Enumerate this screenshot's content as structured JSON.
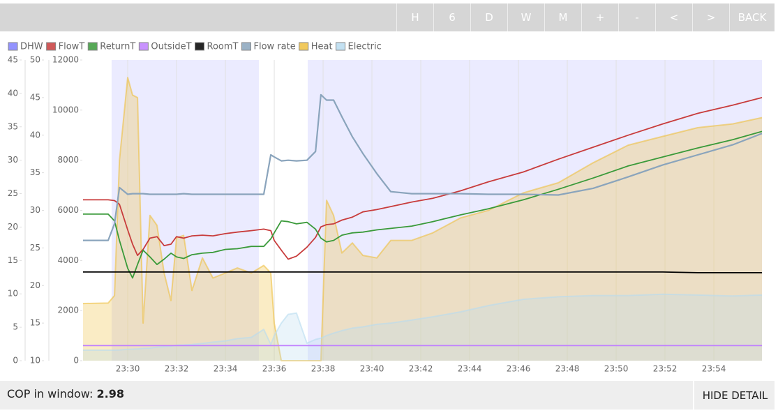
{
  "toolbar": {
    "buttons": [
      "H",
      "6",
      "D",
      "W",
      "M",
      "+",
      "-",
      "<",
      ">",
      "BACK"
    ]
  },
  "footer": {
    "cop_label": "COP in window:",
    "cop_value": 2.98,
    "hide_detail": "HIDE DETAIL"
  },
  "chart_data": {
    "type": "line",
    "xgrid": true,
    "xlim": [
      1408.17,
      1435.97
    ],
    "xticks": [
      {
        "value": 1410,
        "label": "23:30"
      },
      {
        "value": 1412,
        "label": "23:32"
      },
      {
        "value": 1414,
        "label": "23:34"
      },
      {
        "value": 1416,
        "label": "23:36"
      },
      {
        "value": 1418,
        "label": "23:38"
      },
      {
        "value": 1420,
        "label": "23:40"
      },
      {
        "value": 1422,
        "label": "23:42"
      },
      {
        "value": 1424,
        "label": "23:44"
      },
      {
        "value": 1426,
        "label": "23:46"
      },
      {
        "value": 1428,
        "label": "23:48"
      },
      {
        "value": 1430,
        "label": "23:50"
      },
      {
        "value": 1432,
        "label": "23:52"
      },
      {
        "value": 1434,
        "label": "23:54"
      }
    ],
    "ylim": [
      0,
      12000
    ],
    "yticks": [
      0,
      2000,
      4000,
      6000,
      8000,
      10000,
      12000
    ],
    "y2lim": [
      10,
      50
    ],
    "y2ticks": [
      10,
      15,
      20,
      25,
      30,
      35,
      40,
      45,
      50
    ],
    "y3lim": [
      0,
      45
    ],
    "y3ticks": [
      0,
      5,
      10,
      15,
      20,
      25,
      30,
      35,
      40,
      45
    ],
    "y3color": "#4aa8dc",
    "x": [
      1408.17,
      1409.2,
      1409.46,
      1409.66,
      1410,
      1410.2,
      1410.4,
      1410.63,
      1410.91,
      1411.2,
      1411.49,
      1411.77,
      1412,
      1412.29,
      1412.63,
      1413.06,
      1413.49,
      1414,
      1414.49,
      1415.06,
      1415.57,
      1415.86,
      1416,
      1416.29,
      1416.57,
      1416.91,
      1417.34,
      1417.69,
      1417.91,
      1418.14,
      1418.43,
      1418.77,
      1419.2,
      1419.63,
      1420.2,
      1420.77,
      1421.63,
      1422.49,
      1423.63,
      1424.77,
      1426.2,
      1427.63,
      1429.06,
      1430.49,
      1431.91,
      1433.34,
      1434.77,
      1435.97
    ],
    "series": [
      {
        "name": "DHW",
        "color": "#8080ff",
        "periods": [
          [
            1409.34,
            1415.37
          ],
          [
            1417.37,
            1435.97
          ]
        ]
      },
      {
        "name": "FlowT",
        "color": "#c83c3c",
        "axis": "y2",
        "values": [
          31.4,
          31.4,
          31.3,
          30.8,
          27.4,
          25.5,
          24,
          24.8,
          26.3,
          26.5,
          25.3,
          25.5,
          26.5,
          26.3,
          26.6,
          26.7,
          26.6,
          26.9,
          27.1,
          27.3,
          27.5,
          27.3,
          26,
          24.7,
          23.5,
          23.9,
          25.1,
          26.4,
          27.8,
          28.1,
          28.2,
          28.7,
          29.1,
          29.8,
          30.1,
          30.5,
          31.1,
          31.6,
          32.6,
          33.8,
          35.1,
          36.8,
          38.4,
          40,
          41.5,
          42.9,
          44,
          45
        ]
      },
      {
        "name": "ReturnT",
        "color": "#3a9a3a",
        "axis": "y2",
        "values": [
          29.5,
          29.5,
          28.6,
          26,
          22.3,
          21,
          22.8,
          24.7,
          23.8,
          22.8,
          23.5,
          24.3,
          23.8,
          23.6,
          24.1,
          24.3,
          24.4,
          24.8,
          24.9,
          25.2,
          25.2,
          26.2,
          27,
          28.6,
          28.5,
          28.2,
          28.4,
          27.5,
          26.3,
          25.8,
          26,
          26.7,
          27,
          27.1,
          27.4,
          27.6,
          27.9,
          28.5,
          29.4,
          30.2,
          31.4,
          32.8,
          34.3,
          35.9,
          37.1,
          38.3,
          39.4,
          40.5
        ]
      },
      {
        "name": "OutsideT",
        "color": "#c080ff",
        "axis": "y2",
        "values": [
          12,
          12,
          12,
          12,
          12,
          12,
          12,
          12,
          12,
          12,
          12,
          12,
          12,
          12,
          12,
          12,
          12,
          12,
          12,
          12,
          12,
          12,
          12,
          12,
          12,
          12,
          12,
          12,
          12,
          12,
          12,
          12,
          12,
          12,
          12,
          12,
          12,
          12,
          12,
          12,
          12,
          12,
          12,
          12,
          12,
          12,
          12,
          12
        ]
      },
      {
        "name": "RoomT",
        "color": "#000000",
        "axis": "y2",
        "values": [
          21.8,
          21.8,
          21.8,
          21.8,
          21.8,
          21.8,
          21.8,
          21.8,
          21.8,
          21.8,
          21.8,
          21.8,
          21.8,
          21.8,
          21.8,
          21.8,
          21.8,
          21.8,
          21.8,
          21.8,
          21.8,
          21.8,
          21.8,
          21.8,
          21.8,
          21.8,
          21.8,
          21.8,
          21.8,
          21.8,
          21.8,
          21.8,
          21.8,
          21.8,
          21.8,
          21.8,
          21.8,
          21.8,
          21.8,
          21.8,
          21.8,
          21.8,
          21.8,
          21.8,
          21.8,
          21.7,
          21.7,
          21.7
        ]
      },
      {
        "name": "Flow rate",
        "color": "#8aa4bc",
        "axis": "y3",
        "values": [
          18,
          18,
          20.5,
          25.9,
          24.9,
          25,
          25,
          25,
          24.9,
          24.9,
          24.9,
          24.9,
          24.9,
          25,
          24.9,
          24.9,
          24.9,
          24.9,
          24.9,
          24.9,
          24.9,
          30.8,
          30.5,
          29.9,
          30,
          29.9,
          30,
          31.3,
          39.8,
          39,
          39,
          36.5,
          33.5,
          31,
          28,
          25.3,
          25,
          25,
          25,
          24.9,
          24.9,
          24.8,
          25.8,
          27.5,
          29.3,
          30.8,
          32.3,
          34
        ]
      },
      {
        "name": "Heat",
        "color": "#eec040",
        "area": true,
        "values": [
          2280,
          2300,
          2600,
          8000,
          11300,
          10600,
          10500,
          1500,
          5800,
          5400,
          3500,
          2400,
          4900,
          5000,
          2800,
          4100,
          3300,
          3500,
          3700,
          3500,
          3800,
          3500,
          1500,
          0,
          0,
          0,
          0,
          0,
          0,
          6400,
          5800,
          4300,
          4700,
          4200,
          4100,
          4800,
          4800,
          5100,
          5700,
          6000,
          6700,
          7100,
          7900,
          8600,
          8950,
          9300,
          9450,
          9700
        ]
      },
      {
        "name": "Electric",
        "color": "#b8dcf0",
        "area": true,
        "values": [
          420,
          420,
          420,
          430,
          450,
          460,
          470,
          490,
          500,
          540,
          560,
          580,
          620,
          630,
          650,
          690,
          740,
          790,
          880,
          930,
          1250,
          650,
          1000,
          1500,
          1850,
          1900,
          700,
          850,
          900,
          1000,
          1100,
          1200,
          1300,
          1350,
          1450,
          1500,
          1620,
          1750,
          1950,
          2200,
          2450,
          2550,
          2600,
          2600,
          2650,
          2620,
          2580,
          2620
        ]
      }
    ]
  }
}
